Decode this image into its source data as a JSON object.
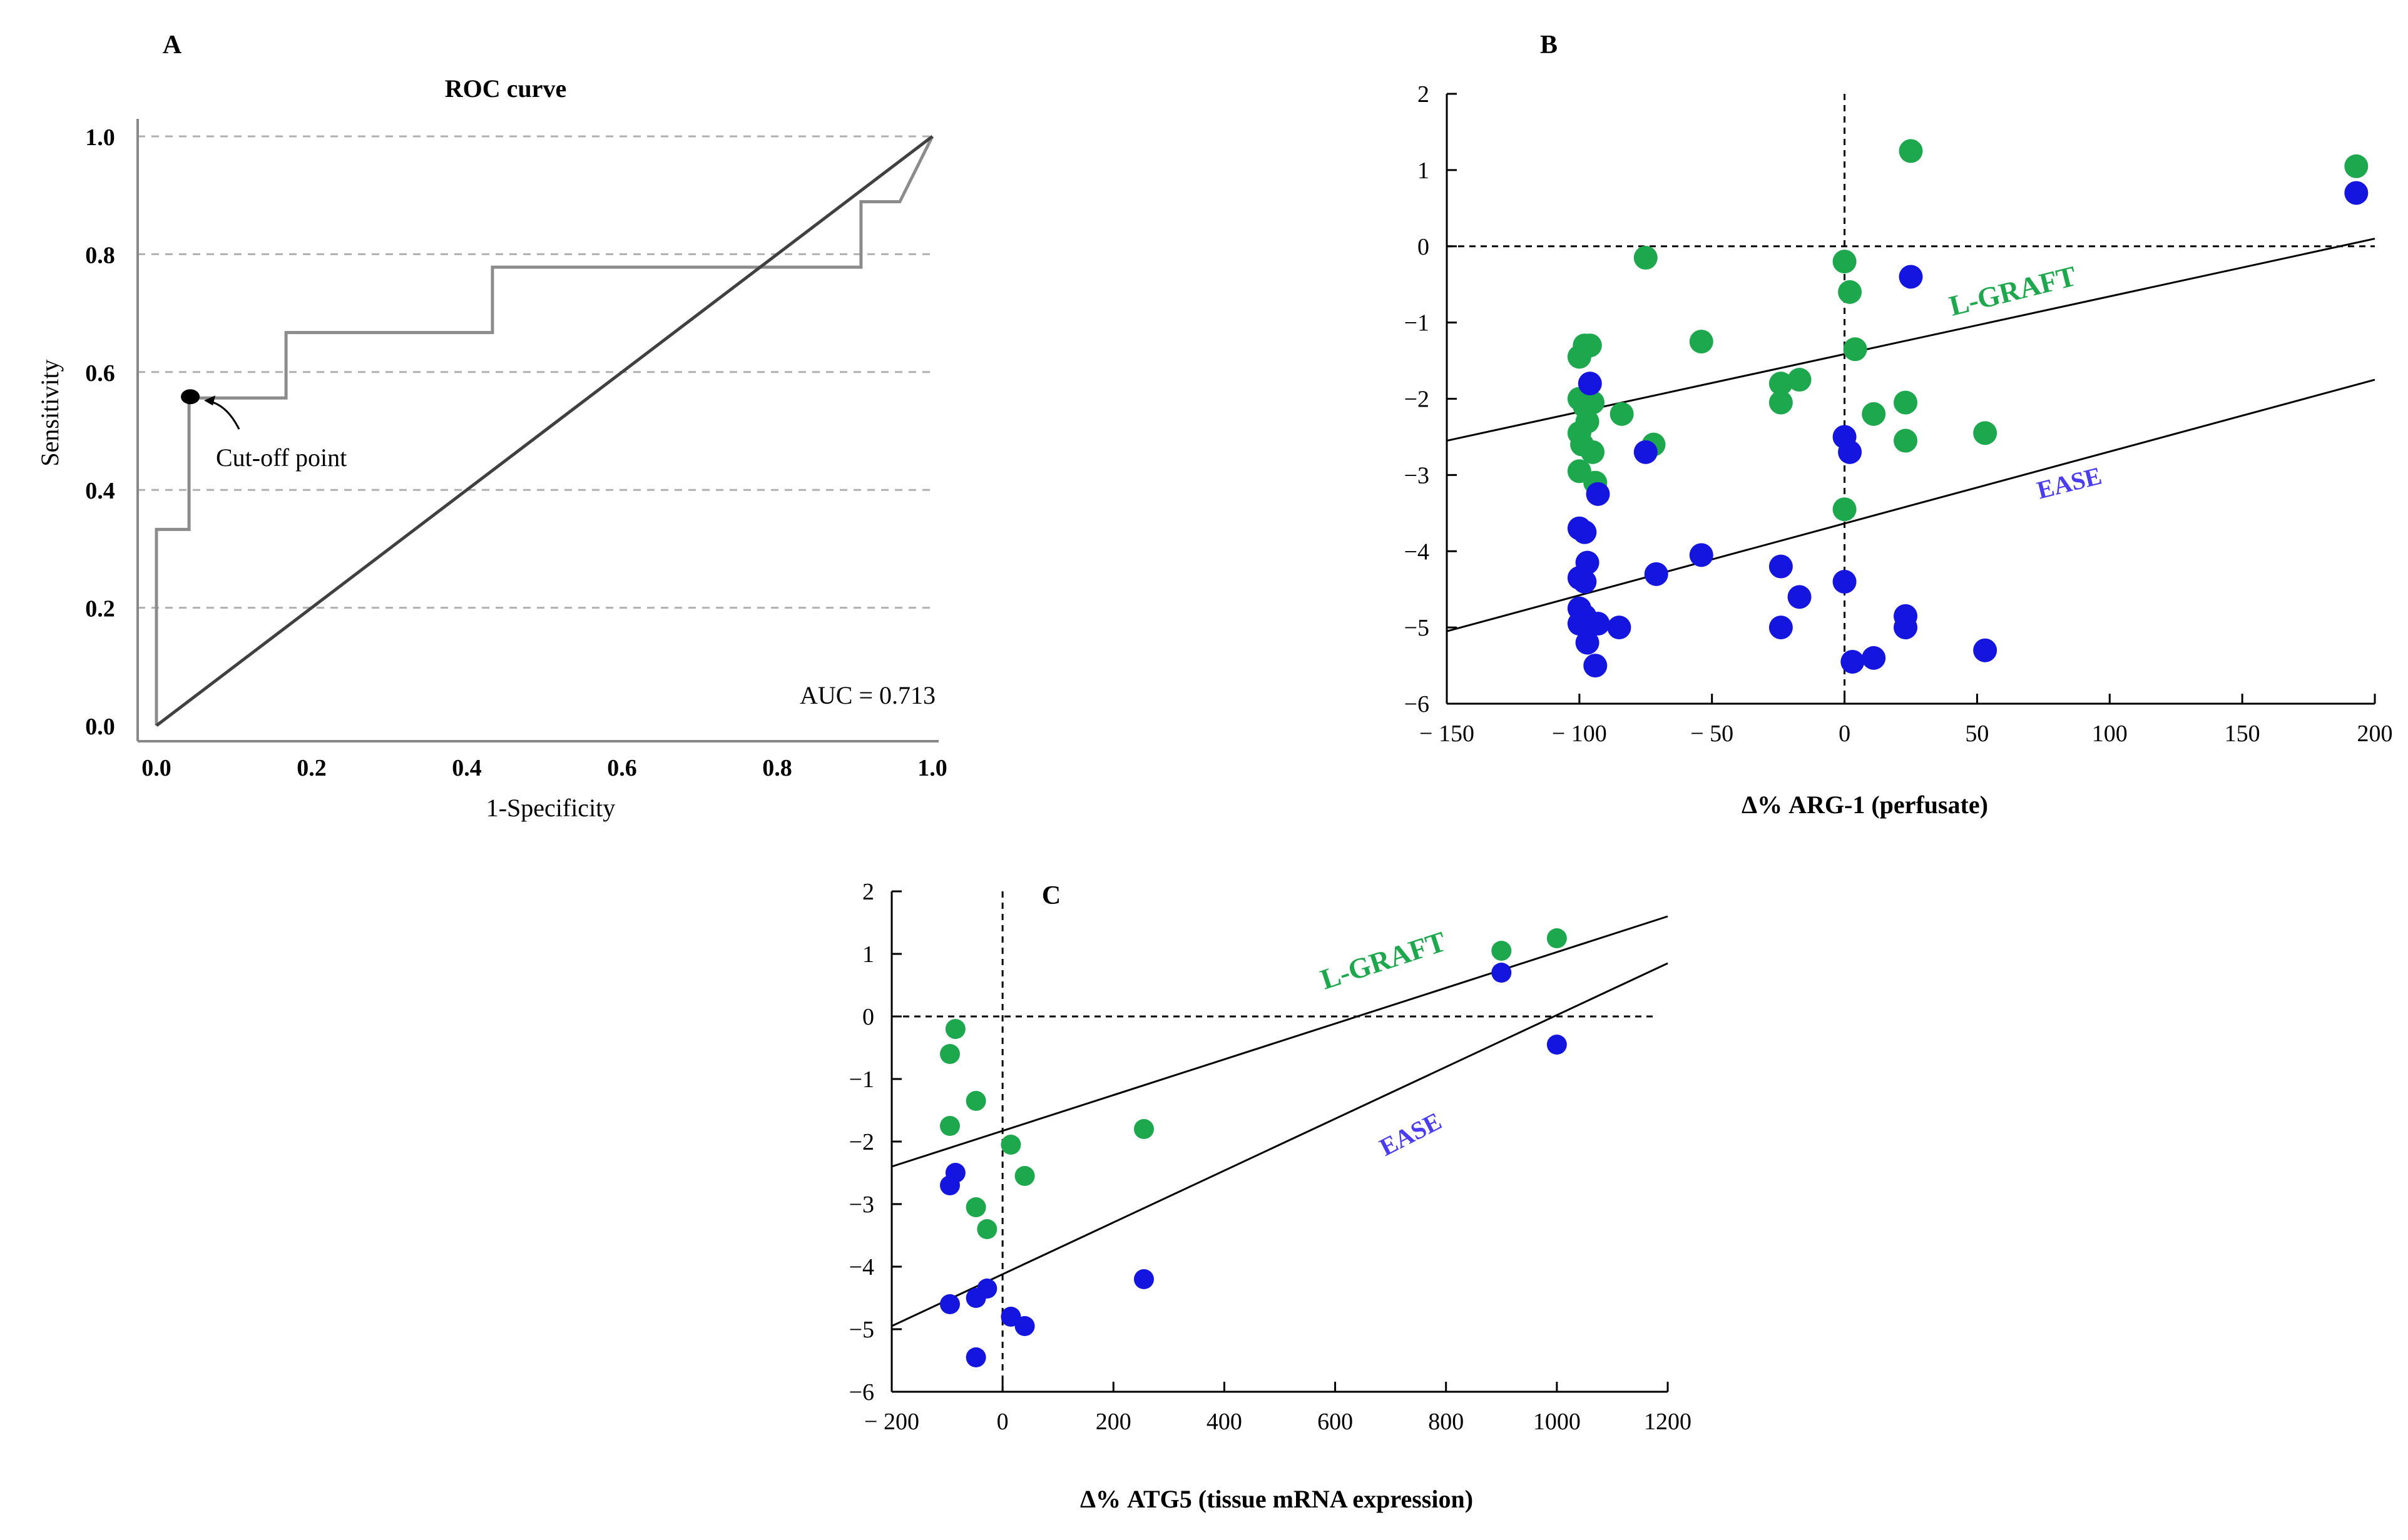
{
  "chart_data": [
    {
      "panel": "A",
      "type": "line",
      "title": "ROC curve",
      "xlabel": "1-Specificity",
      "ylabel": "Sensitivity",
      "xlim": [
        0,
        1
      ],
      "ylim": [
        0,
        1
      ],
      "x_ticks": [
        "0.0",
        "0.2",
        "0.4",
        "0.6",
        "0.8",
        "1.0"
      ],
      "y_ticks": [
        "0.0",
        "0.2",
        "0.4",
        "0.6",
        "0.8",
        "1.0"
      ],
      "series": [
        {
          "name": "ROC",
          "color": "#8c8c8c",
          "points": [
            [
              0,
              0
            ],
            [
              0,
              0.333
            ],
            [
              0.042,
              0.333
            ],
            [
              0.042,
              0.556
            ],
            [
              0.167,
              0.556
            ],
            [
              0.167,
              0.667
            ],
            [
              0.433,
              0.667
            ],
            [
              0.433,
              0.778
            ],
            [
              0.908,
              0.778
            ],
            [
              0.908,
              0.889
            ],
            [
              0.958,
              0.889
            ],
            [
              1,
              1
            ]
          ]
        },
        {
          "name": "Reference",
          "color": "#404040",
          "points": [
            [
              0,
              0
            ],
            [
              1,
              1
            ]
          ]
        }
      ],
      "cutoff_point": {
        "x": 0.042,
        "y": 0.556,
        "label": "Cut-off point"
      },
      "annotation": "AUC = 0.713"
    },
    {
      "panel": "B",
      "type": "scatter",
      "xlabel": "Δ% ARG-1 (perfusate)",
      "ylabel": "",
      "xlim": [
        -150,
        200
      ],
      "ylim": [
        -6,
        2
      ],
      "x_ticks": [
        "− 150",
        "− 100",
        "− 50",
        "0",
        "50",
        "100",
        "150",
        "200"
      ],
      "y_ticks": [
        "2",
        "1",
        "0",
        "−1",
        "−2",
        "−3",
        "−4",
        "−5",
        "−6"
      ],
      "series": [
        {
          "name": "L-GRAFT",
          "color": "#1ea84e",
          "points": [
            [
              -75,
              -0.15
            ],
            [
              -100,
              -1.45
            ],
            [
              -98,
              -1.3
            ],
            [
              -96,
              -1.3
            ],
            [
              -100,
              -2.0
            ],
            [
              -98,
              -2.1
            ],
            [
              -95,
              -2.05
            ],
            [
              -100,
              -2.45
            ],
            [
              -97,
              -2.3
            ],
            [
              -99,
              -2.6
            ],
            [
              -95,
              -2.7
            ],
            [
              -100,
              -2.95
            ],
            [
              -94,
              -3.1
            ],
            [
              -84,
              -2.2
            ],
            [
              -72,
              -2.6
            ],
            [
              -54,
              -1.25
            ],
            [
              -24,
              -1.8
            ],
            [
              -24,
              -2.05
            ],
            [
              -17,
              -1.75
            ],
            [
              0,
              -0.2
            ],
            [
              2,
              -0.6
            ],
            [
              4,
              -1.35
            ],
            [
              0,
              -3.45
            ],
            [
              11,
              -2.2
            ],
            [
              23,
              -2.05
            ],
            [
              23,
              -2.55
            ],
            [
              25,
              1.25
            ],
            [
              53,
              -2.45
            ],
            [
              193,
              1.05
            ]
          ]
        },
        {
          "name": "EASE",
          "color": "#1515e0",
          "points": [
            [
              -96,
              -1.8
            ],
            [
              -100,
              -3.7
            ],
            [
              -98,
              -3.75
            ],
            [
              -97,
              -4.15
            ],
            [
              -100,
              -4.35
            ],
            [
              -98,
              -4.4
            ],
            [
              -100,
              -4.75
            ],
            [
              -98,
              -4.85
            ],
            [
              -100,
              -4.95
            ],
            [
              -97,
              -5.2
            ],
            [
              -94,
              -5.5
            ],
            [
              -93,
              -3.25
            ],
            [
              -93,
              -4.95
            ],
            [
              -85,
              -5.0
            ],
            [
              -75,
              -2.7
            ],
            [
              -71,
              -4.3
            ],
            [
              -54,
              -4.05
            ],
            [
              -24,
              -4.2
            ],
            [
              -24,
              -5.0
            ],
            [
              -17,
              -4.6
            ],
            [
              0,
              -2.5
            ],
            [
              2,
              -2.7
            ],
            [
              0,
              -4.4
            ],
            [
              3,
              -5.45
            ],
            [
              11,
              -5.4
            ],
            [
              23,
              -4.85
            ],
            [
              23,
              -5.0
            ],
            [
              25,
              -0.4
            ],
            [
              53,
              -5.3
            ],
            [
              193,
              0.7
            ]
          ]
        }
      ],
      "fit_lines": [
        {
          "name": "L-GRAFT",
          "from": [
            -150,
            -2.55
          ],
          "to": [
            200,
            0.1
          ]
        },
        {
          "name": "EASE",
          "from": [
            -150,
            -5.05
          ],
          "to": [
            200,
            -1.75
          ]
        }
      ],
      "annotations": [
        "L-GRAFT",
        "EASE"
      ]
    },
    {
      "panel": "C",
      "type": "scatter",
      "xlabel": "Δ%  ATG5 (tissue mRNA expression)",
      "ylabel": "",
      "xlim": [
        -200,
        1200
      ],
      "ylim": [
        -6,
        2
      ],
      "x_ticks": [
        "− 200",
        "0",
        "200",
        "400",
        "600",
        "800",
        "1000",
        "1200"
      ],
      "y_ticks": [
        "2",
        "1",
        "0",
        "−1",
        "−2",
        "−3",
        "−4",
        "−5",
        "−6"
      ],
      "series": [
        {
          "name": "L-GRAFT",
          "color": "#1ea84e",
          "points": [
            [
              -85,
              -0.2
            ],
            [
              -95,
              -0.6
            ],
            [
              -95,
              -1.75
            ],
            [
              -48,
              -1.35
            ],
            [
              -48,
              -3.05
            ],
            [
              -28,
              -3.4
            ],
            [
              15,
              -2.05
            ],
            [
              40,
              -2.55
            ],
            [
              255,
              -1.8
            ],
            [
              900,
              1.05
            ],
            [
              1000,
              1.25
            ]
          ]
        },
        {
          "name": "EASE",
          "color": "#1515e0",
          "points": [
            [
              -85,
              -2.5
            ],
            [
              -95,
              -2.7
            ],
            [
              -95,
              -4.6
            ],
            [
              -48,
              -4.5
            ],
            [
              -28,
              -4.35
            ],
            [
              15,
              -4.8
            ],
            [
              40,
              -4.95
            ],
            [
              -48,
              -5.45
            ],
            [
              255,
              -4.2
            ],
            [
              900,
              0.7
            ],
            [
              1000,
              -0.45
            ]
          ]
        }
      ],
      "fit_lines": [
        {
          "name": "L-GRAFT",
          "from": [
            -200,
            -2.4
          ],
          "to": [
            1200,
            1.6
          ]
        },
        {
          "name": "EASE",
          "from": [
            -200,
            -4.95
          ],
          "to": [
            1200,
            0.85
          ]
        }
      ],
      "annotations": [
        "L-GRAFT",
        "EASE"
      ]
    }
  ]
}
